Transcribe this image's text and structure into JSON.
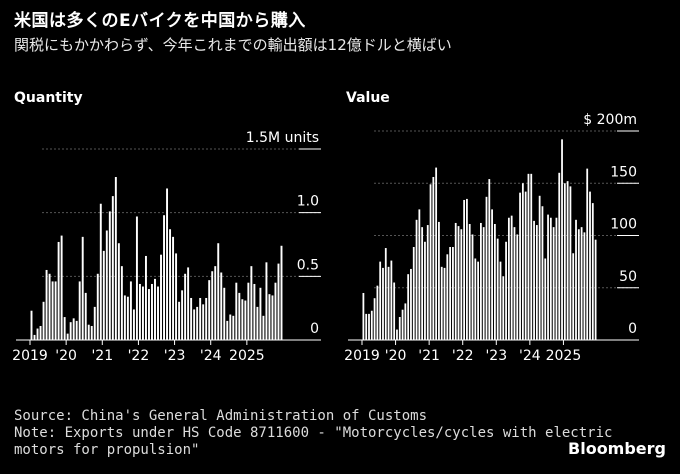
{
  "header": {
    "title": "米国は多くのEバイクを中国から購入",
    "subtitle": "関税にもかかわらず、今年これまでの輸出額は12億ドルと横ばい"
  },
  "footer": {
    "source": "Source: China's General Administration of Customs",
    "note_line1": "Note: Exports under HS Code 8711600 - \"Motorcycles/cycles with electric",
    "note_line2": "motors for propulsion\"",
    "brand": "Bloomberg"
  },
  "chart_data": [
    {
      "type": "bar",
      "title": "Quantity",
      "unit": "M units",
      "ylim": [
        0,
        1.5
      ],
      "y_ticks": [
        {
          "value": 0,
          "label": "0"
        },
        {
          "value": 0.5,
          "label": "0.5"
        },
        {
          "value": 1.0,
          "label": "1.0"
        },
        {
          "value": 1.5,
          "label": "1.5M units"
        }
      ],
      "x_ticks": [
        {
          "index": 0,
          "label": "2019"
        },
        {
          "index": 12,
          "label": "'20"
        },
        {
          "index": 24,
          "label": "'21"
        },
        {
          "index": 36,
          "label": "'22"
        },
        {
          "index": 48,
          "label": "'23"
        },
        {
          "index": 60,
          "label": "'24"
        },
        {
          "index": 72,
          "label": "2025"
        }
      ],
      "values": [
        0.23,
        0.04,
        0.09,
        0.11,
        0.3,
        0.55,
        0.52,
        0.46,
        0.46,
        0.77,
        0.82,
        0.18,
        0.05,
        0.14,
        0.17,
        0.15,
        0.46,
        0.81,
        0.37,
        0.12,
        0.11,
        0.26,
        0.52,
        1.07,
        0.7,
        0.86,
        1.01,
        1.13,
        1.28,
        0.76,
        0.58,
        0.35,
        0.34,
        0.46,
        0.24,
        0.97,
        0.44,
        0.42,
        0.66,
        0.4,
        0.44,
        0.48,
        0.42,
        0.67,
        0.98,
        1.19,
        0.87,
        0.81,
        0.68,
        0.3,
        0.39,
        0.52,
        0.57,
        0.33,
        0.24,
        0.26,
        0.33,
        0.28,
        0.33,
        0.47,
        0.54,
        0.58,
        0.76,
        0.53,
        0.41,
        0.15,
        0.2,
        0.19,
        0.45,
        0.37,
        0.32,
        0.31,
        0.45,
        0.58,
        0.44,
        0.26,
        0.41,
        0.19,
        0.61,
        0.36,
        0.35,
        0.45,
        0.6,
        0.74
      ]
    },
    {
      "type": "bar",
      "title": "Value",
      "unit": "$ m",
      "ylim": [
        0,
        200
      ],
      "y_ticks": [
        {
          "value": 0,
          "label": "0"
        },
        {
          "value": 50,
          "label": "50"
        },
        {
          "value": 100,
          "label": "100"
        },
        {
          "value": 150,
          "label": "150"
        },
        {
          "value": 200,
          "label": "$ 200m"
        }
      ],
      "x_ticks": [
        {
          "index": 0,
          "label": "2019"
        },
        {
          "index": 12,
          "label": "'20"
        },
        {
          "index": 24,
          "label": "'21"
        },
        {
          "index": 36,
          "label": "'22"
        },
        {
          "index": 48,
          "label": "'23"
        },
        {
          "index": 60,
          "label": "'24"
        },
        {
          "index": 72,
          "label": "2025"
        }
      ],
      "values": [
        45,
        25,
        25,
        28,
        40,
        52,
        75,
        69,
        88,
        70,
        76,
        55,
        10,
        22,
        29,
        35,
        63,
        68,
        89,
        115,
        125,
        108,
        94,
        110,
        149,
        156,
        165,
        113,
        70,
        69,
        82,
        89,
        89,
        112,
        109,
        106,
        134,
        135,
        111,
        101,
        78,
        75,
        112,
        108,
        137,
        154,
        125,
        111,
        97,
        75,
        61,
        94,
        117,
        119,
        108,
        101,
        141,
        150,
        142,
        159,
        159,
        114,
        110,
        138,
        128,
        78,
        120,
        117,
        108,
        117,
        160,
        192,
        150,
        152,
        147,
        83,
        115,
        106,
        108,
        103,
        164,
        142,
        131,
        96
      ]
    }
  ]
}
